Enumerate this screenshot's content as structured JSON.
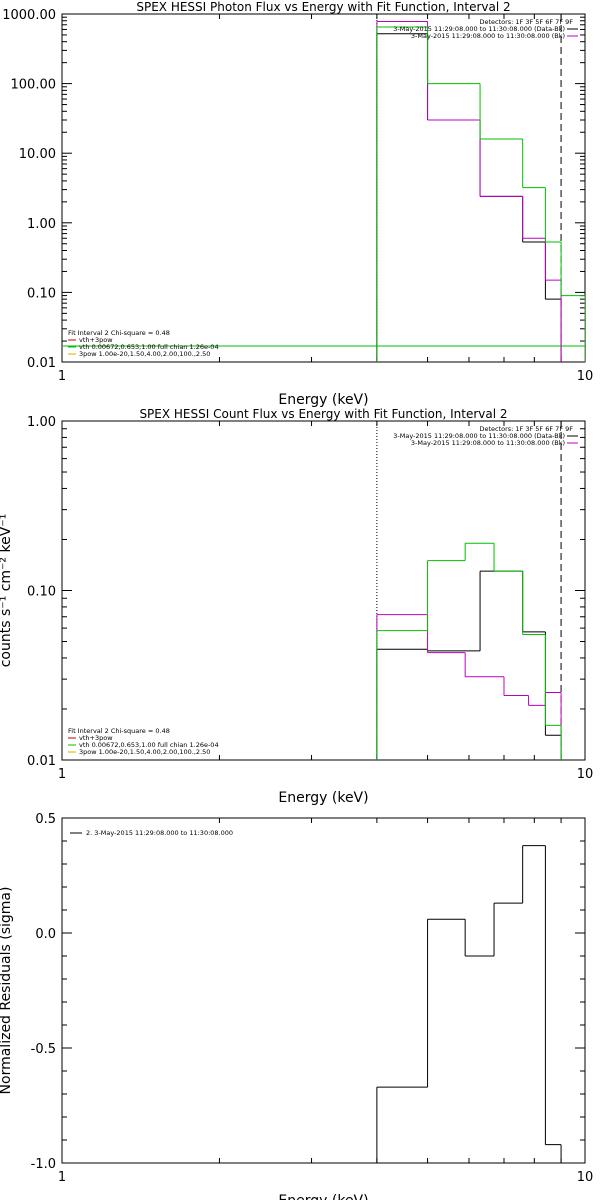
{
  "chart_data": [
    {
      "type": "step",
      "title": "SPEX HESSI Photon Flux vs Energy with Fit Function, Interval 2",
      "xlabel": "Energy (keV)",
      "ylabel": "",
      "x_scale": "log",
      "y_scale": "log",
      "xlim": [
        1,
        10
      ],
      "ylim": [
        0.01,
        1000
      ],
      "x_ticks": [
        "1",
        "10"
      ],
      "y_ticks": [
        "0.01",
        "0.10",
        "1.00",
        "10.00",
        "100.00",
        "1000.00"
      ],
      "legend_top": {
        "heading": "Detectors: 1F 3F 5F 6F 7F 9F",
        "entries": [
          {
            "label": "3-May-2015 11:29:08.000 to 11:30:08.000 (Data-Bk)",
            "color": "#000000"
          },
          {
            "label": "3-May-2015 11:29:08.000 to 11:30:08.000 (Bk)",
            "color": "#c000c0"
          }
        ]
      },
      "legend_bottom": {
        "heading": "Fit Interval 2   Chi-square = 0.48",
        "entries": [
          {
            "label": "vth+3pow",
            "color": "#c00000"
          },
          {
            "label": "vth 0.00672,0.653,1.00  full chian 1.26e-04",
            "color": "#00c000"
          },
          {
            "label": "3pow 1.00e-20,1.50,4.00,2.00,100.,2.50",
            "color": "#d0b000"
          }
        ]
      },
      "vlines": [
        {
          "x": 4.0,
          "style": "dotted"
        },
        {
          "x": 9.0,
          "style": "dashed"
        }
      ],
      "bin_edges": [
        4.0,
        5.0,
        6.3,
        7.6,
        9.0,
        10.0
      ],
      "series": [
        {
          "name": "Data-Bk",
          "color": "#000000",
          "edges": [
            4.0,
            5.0,
            6.3,
            7.6,
            8.4,
            9.0
          ],
          "values": [
            520,
            30,
            2.4,
            0.53,
            0.08
          ]
        },
        {
          "name": "Bk",
          "color": "#c000c0",
          "edges": [
            4.0,
            5.0,
            6.3,
            7.6,
            8.4,
            9.0
          ],
          "values": [
            780,
            30,
            2.4,
            0.6,
            0.15
          ]
        },
        {
          "name": "fit",
          "color": "#00c000",
          "edges": [
            4.0,
            5.0,
            6.3,
            7.6,
            8.4,
            9.0,
            10.0
          ],
          "values": [
            650,
            100,
            16,
            3.2,
            0.53,
            0.09,
            0.017
          ]
        }
      ]
    },
    {
      "type": "step",
      "title": "SPEX HESSI Count Flux vs Energy with Fit Function, Interval 2",
      "xlabel": "Energy (keV)",
      "ylabel": "counts s⁻¹ cm⁻² keV⁻¹",
      "x_scale": "log",
      "y_scale": "log",
      "xlim": [
        1,
        10
      ],
      "ylim": [
        0.01,
        1.0
      ],
      "x_ticks": [
        "1",
        "10"
      ],
      "y_ticks": [
        "0.01",
        "0.10",
        "1.00"
      ],
      "legend_top": {
        "heading": "Detectors: 1F 3F 5F 6F 7F 9F",
        "entries": [
          {
            "label": "3-May-2015 11:29:08.000 to 11:30:08.000 (Data-Bk)",
            "color": "#000000"
          },
          {
            "label": "3-May-2015 11:29:08.000 to 11:30:08.000 (Bk)",
            "color": "#c000c0"
          }
        ]
      },
      "legend_bottom": {
        "heading": "Fit Interval 2   Chi-square = 0.48",
        "entries": [
          {
            "label": "vth+3pow",
            "color": "#c00000"
          },
          {
            "label": "vth 0.00672,0.653,1.00  full chian 1.26e-04",
            "color": "#00c000"
          },
          {
            "label": "3pow 1.00e-20,1.50,4.00,2.00,100.,2.50",
            "color": "#d0b000"
          }
        ]
      },
      "vlines": [
        {
          "x": 4.0,
          "style": "dotted"
        },
        {
          "x": 9.0,
          "style": "dashed"
        }
      ],
      "series": [
        {
          "name": "Data-Bk",
          "color": "#000000",
          "edges": [
            4.0,
            5.0,
            6.3,
            7.6,
            8.4,
            9.0
          ],
          "values": [
            0.045,
            0.044,
            0.13,
            0.057,
            0.014
          ]
        },
        {
          "name": "Bk",
          "color": "#c000c0",
          "edges": [
            4.0,
            5.0,
            5.9,
            7.0,
            7.8,
            8.4,
            9.0
          ],
          "values": [
            0.072,
            0.043,
            0.031,
            0.024,
            0.021,
            0.025
          ]
        },
        {
          "name": "fit",
          "color": "#00c000",
          "edges": [
            4.0,
            5.0,
            5.9,
            6.7,
            7.6,
            8.4,
            9.0
          ],
          "values": [
            0.058,
            0.15,
            0.19,
            0.13,
            0.055,
            0.016
          ]
        }
      ]
    },
    {
      "type": "step",
      "title": "",
      "xlabel": "Energy (keV)",
      "ylabel": "Normalized Residuals (sigma)",
      "x_scale": "log",
      "y_scale": "linear",
      "xlim": [
        1,
        10
      ],
      "ylim": [
        -1.0,
        0.5
      ],
      "x_ticks": [
        "1",
        "10"
      ],
      "y_ticks": [
        "0.5",
        "0.0",
        "-0.5",
        "-1.0"
      ],
      "legend_top": {
        "heading": "",
        "entries": [
          {
            "label": "2. 3-May-2015 11:29:08.000 to 11:30:08.000",
            "color": "#000000"
          }
        ]
      },
      "series": [
        {
          "name": "",
          "color": "#000000",
          "edges": [
            4.0,
            5.0,
            5.9,
            6.7,
            7.6,
            8.4,
            9.0
          ],
          "values": [
            -0.67,
            0.06,
            -0.1,
            0.13,
            0.38,
            -0.92
          ]
        }
      ]
    }
  ]
}
